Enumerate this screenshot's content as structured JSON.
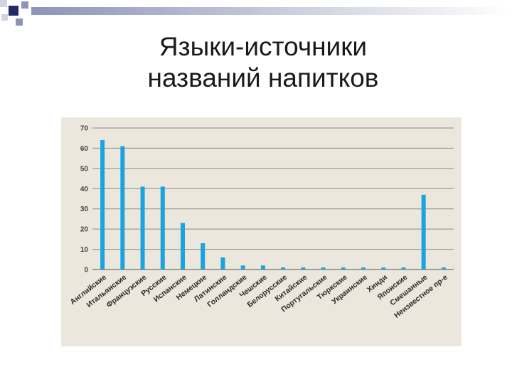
{
  "slide": {
    "title_line1": "Языки-источники",
    "title_line2": "названий напитков"
  },
  "colors": {
    "bar": "#1aa3e0",
    "panel": "#ece7dd",
    "grid": "#8a8a8a",
    "deco_dark": "#1f2a66",
    "deco_mid": "#8e94b8",
    "deco_light": "#d0d3e3"
  },
  "chart_data": {
    "type": "bar",
    "categories": [
      "Английские",
      "Итальянские",
      "Французские",
      "Русские",
      "Испанские",
      "Немецкие",
      "Латинские",
      "Голландские",
      "Чешские",
      "Белорусские",
      "Китайские",
      "Португальские",
      "Тюркские",
      "Украинские",
      "Хинди",
      "Японские",
      "Смешанные",
      "Неизвестное пр-е"
    ],
    "values": [
      64,
      61,
      41,
      41,
      23,
      13,
      6,
      2,
      2,
      1,
      1,
      1,
      1,
      1,
      1,
      1,
      37,
      1
    ],
    "ylim": [
      0,
      70
    ],
    "yticks": [
      0,
      10,
      20,
      30,
      40,
      50,
      60,
      70
    ],
    "grid": true,
    "legend": "none"
  }
}
